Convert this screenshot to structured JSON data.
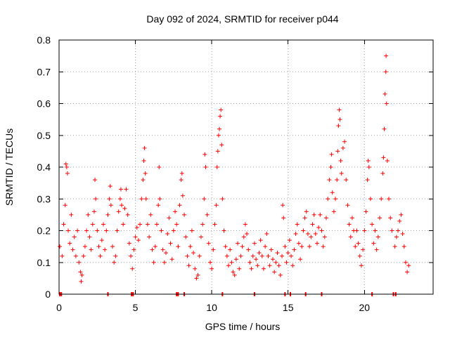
{
  "chart_data": {
    "type": "scatter",
    "title": "Day 092 of 2024, SRMTID for receiver p044",
    "xlabel": "GPS time / hours",
    "ylabel": "SRMTID / TECUs",
    "xlim": [
      0,
      24.5
    ],
    "ylim": [
      0,
      0.8
    ],
    "x_ticks": [
      0,
      5,
      10,
      15,
      20
    ],
    "x_tick_labels": [
      "0",
      "5",
      "10",
      "15",
      "20"
    ],
    "y_ticks": [
      0,
      0.1,
      0.2,
      0.3,
      0.4,
      0.5,
      0.6,
      0.7,
      0.8
    ],
    "y_tick_labels": [
      "0",
      "0.1",
      "0.2",
      "0.3",
      "0.4",
      "0.5",
      "0.6",
      "0.7",
      "0.8"
    ],
    "grid": true,
    "marker": "+",
    "color": "#ff0000",
    "series": [
      {
        "name": "SRMTID",
        "points": [
          [
            0.05,
            0.15
          ],
          [
            0.2,
            0.12
          ],
          [
            0.3,
            0.22
          ],
          [
            0.4,
            0.28
          ],
          [
            0.45,
            0.41
          ],
          [
            0.5,
            0.4
          ],
          [
            0.55,
            0.38
          ],
          [
            0.6,
            0.2
          ],
          [
            0.7,
            0.16
          ],
          [
            0.8,
            0.25
          ],
          [
            0.9,
            0.14
          ],
          [
            1.0,
            0.18
          ],
          [
            1.1,
            0.12
          ],
          [
            1.2,
            0.2
          ],
          [
            1.3,
            0.1
          ],
          [
            1.4,
            0.07
          ],
          [
            1.45,
            0.04
          ],
          [
            1.5,
            0.06
          ],
          [
            1.6,
            0.12
          ],
          [
            1.7,
            0.15
          ],
          [
            1.8,
            0.2
          ],
          [
            1.9,
            0.25
          ],
          [
            2.0,
            0.18
          ],
          [
            2.1,
            0.14
          ],
          [
            2.2,
            0.22
          ],
          [
            2.3,
            0.26
          ],
          [
            2.35,
            0.36
          ],
          [
            2.4,
            0.3
          ],
          [
            2.5,
            0.2
          ],
          [
            2.6,
            0.15
          ],
          [
            2.7,
            0.12
          ],
          [
            2.8,
            0.17
          ],
          [
            2.9,
            0.22
          ],
          [
            3.0,
            0.14
          ],
          [
            3.1,
            0.2
          ],
          [
            3.2,
            0.25
          ],
          [
            3.3,
            0.3
          ],
          [
            3.35,
            0.34
          ],
          [
            3.4,
            0.28
          ],
          [
            3.5,
            0.15
          ],
          [
            3.6,
            0.1
          ],
          [
            3.7,
            0.12
          ],
          [
            3.8,
            0.2
          ],
          [
            3.9,
            0.26
          ],
          [
            4.0,
            0.3
          ],
          [
            4.05,
            0.33
          ],
          [
            4.1,
            0.28
          ],
          [
            4.2,
            0.22
          ],
          [
            4.3,
            0.27
          ],
          [
            4.4,
            0.33
          ],
          [
            4.5,
            0.25
          ],
          [
            4.6,
            0.16
          ],
          [
            4.7,
            0.12
          ],
          [
            4.8,
            0.08
          ],
          [
            4.9,
            0.14
          ],
          [
            5.0,
            0.18
          ],
          [
            5.1,
            0.21
          ],
          [
            5.2,
            0.17
          ],
          [
            5.3,
            0.22
          ],
          [
            5.4,
            0.3
          ],
          [
            5.5,
            0.36
          ],
          [
            5.55,
            0.42
          ],
          [
            5.6,
            0.46
          ],
          [
            5.65,
            0.38
          ],
          [
            5.7,
            0.3
          ],
          [
            5.8,
            0.22
          ],
          [
            5.9,
            0.18
          ],
          [
            6.0,
            0.25
          ],
          [
            6.1,
            0.14
          ],
          [
            6.2,
            0.1
          ],
          [
            6.3,
            0.15
          ],
          [
            6.4,
            0.22
          ],
          [
            6.5,
            0.28
          ],
          [
            6.55,
            0.4
          ],
          [
            6.6,
            0.3
          ],
          [
            6.7,
            0.2
          ],
          [
            6.8,
            0.14
          ],
          [
            6.9,
            0.1
          ],
          [
            7.0,
            0.13
          ],
          [
            7.1,
            0.19
          ],
          [
            7.2,
            0.24
          ],
          [
            7.3,
            0.16
          ],
          [
            7.4,
            0.11
          ],
          [
            7.5,
            0.2
          ],
          [
            7.6,
            0.26
          ],
          [
            7.7,
            0.22
          ],
          [
            7.8,
            0.15
          ],
          [
            7.9,
            0.28
          ],
          [
            8.0,
            0.36
          ],
          [
            8.05,
            0.38
          ],
          [
            8.1,
            0.31
          ],
          [
            8.2,
            0.25
          ],
          [
            8.3,
            0.18
          ],
          [
            8.4,
            0.12
          ],
          [
            8.5,
            0.09
          ],
          [
            8.6,
            0.15
          ],
          [
            8.7,
            0.2
          ],
          [
            8.8,
            0.13
          ],
          [
            8.9,
            0.08
          ],
          [
            9.0,
            0.05
          ],
          [
            9.1,
            0.06
          ],
          [
            9.2,
            0.12
          ],
          [
            9.3,
            0.18
          ],
          [
            9.4,
            0.22
          ],
          [
            9.5,
            0.3
          ],
          [
            9.55,
            0.44
          ],
          [
            9.6,
            0.4
          ],
          [
            9.7,
            0.25
          ],
          [
            9.8,
            0.16
          ],
          [
            9.9,
            0.1
          ],
          [
            10.0,
            0.08
          ],
          [
            10.1,
            0.14
          ],
          [
            10.2,
            0.22
          ],
          [
            10.3,
            0.28
          ],
          [
            10.35,
            0.4
          ],
          [
            10.4,
            0.45
          ],
          [
            10.45,
            0.5
          ],
          [
            10.5,
            0.52
          ],
          [
            10.55,
            0.56
          ],
          [
            10.6,
            0.58
          ],
          [
            10.65,
            0.47
          ],
          [
            10.7,
            0.3
          ],
          [
            10.8,
            0.2
          ],
          [
            10.9,
            0.15
          ],
          [
            11.0,
            0.12
          ],
          [
            11.1,
            0.09
          ],
          [
            11.2,
            0.14
          ],
          [
            11.3,
            0.1
          ],
          [
            11.4,
            0.07
          ],
          [
            11.5,
            0.06
          ],
          [
            11.6,
            0.11
          ],
          [
            11.7,
            0.16
          ],
          [
            11.8,
            0.08
          ],
          [
            11.9,
            0.12
          ],
          [
            12.0,
            0.15
          ],
          [
            12.1,
            0.18
          ],
          [
            12.2,
            0.22
          ],
          [
            12.3,
            0.19
          ],
          [
            12.4,
            0.14
          ],
          [
            12.5,
            0.1
          ],
          [
            12.6,
            0.08
          ],
          [
            12.7,
            0.12
          ],
          [
            12.8,
            0.16
          ],
          [
            12.9,
            0.11
          ],
          [
            13.0,
            0.09
          ],
          [
            13.1,
            0.13
          ],
          [
            13.2,
            0.17
          ],
          [
            13.3,
            0.12
          ],
          [
            13.4,
            0.08
          ],
          [
            13.5,
            0.15
          ],
          [
            13.6,
            0.19
          ],
          [
            13.7,
            0.12
          ],
          [
            13.8,
            0.09
          ],
          [
            13.9,
            0.14
          ],
          [
            14.0,
            0.11
          ],
          [
            14.1,
            0.07
          ],
          [
            14.2,
            0.1
          ],
          [
            14.3,
            0.13
          ],
          [
            14.4,
            0.09
          ],
          [
            14.5,
            0.06
          ],
          [
            14.6,
            0.12
          ],
          [
            14.65,
            0.28
          ],
          [
            14.7,
            0.24
          ],
          [
            14.8,
            0.15
          ],
          [
            14.9,
            0.1
          ],
          [
            15.0,
            0.13
          ],
          [
            15.1,
            0.17
          ],
          [
            15.2,
            0.12
          ],
          [
            15.3,
            0.09
          ],
          [
            15.4,
            0.14
          ],
          [
            15.5,
            0.19
          ],
          [
            15.6,
            0.22
          ],
          [
            15.7,
            0.16
          ],
          [
            15.8,
            0.11
          ],
          [
            15.9,
            0.15
          ],
          [
            16.0,
            0.2
          ],
          [
            16.1,
            0.24
          ],
          [
            16.2,
            0.26
          ],
          [
            16.3,
            0.19
          ],
          [
            16.4,
            0.15
          ],
          [
            16.5,
            0.18
          ],
          [
            16.6,
            0.22
          ],
          [
            16.7,
            0.25
          ],
          [
            16.8,
            0.19
          ],
          [
            16.9,
            0.16
          ],
          [
            17.0,
            0.21
          ],
          [
            17.1,
            0.25
          ],
          [
            17.2,
            0.2
          ],
          [
            17.3,
            0.15
          ],
          [
            17.4,
            0.18
          ],
          [
            17.5,
            0.24
          ],
          [
            17.6,
            0.3
          ],
          [
            17.7,
            0.36
          ],
          [
            17.8,
            0.4
          ],
          [
            17.85,
            0.44
          ],
          [
            17.9,
            0.32
          ],
          [
            18.0,
            0.26
          ],
          [
            18.1,
            0.3
          ],
          [
            18.2,
            0.36
          ],
          [
            18.25,
            0.45
          ],
          [
            18.3,
            0.53
          ],
          [
            18.35,
            0.58
          ],
          [
            18.4,
            0.55
          ],
          [
            18.45,
            0.42
          ],
          [
            18.5,
            0.38
          ],
          [
            18.6,
            0.46
          ],
          [
            18.7,
            0.48
          ],
          [
            18.8,
            0.36
          ],
          [
            18.9,
            0.28
          ],
          [
            19.0,
            0.22
          ],
          [
            19.1,
            0.18
          ],
          [
            19.2,
            0.24
          ],
          [
            19.3,
            0.2
          ],
          [
            19.4,
            0.15
          ],
          [
            19.5,
            0.2
          ],
          [
            19.6,
            0.16
          ],
          [
            19.7,
            0.12
          ],
          [
            19.8,
            0.09
          ],
          [
            19.9,
            0.14
          ],
          [
            20.0,
            0.2
          ],
          [
            20.1,
            0.26
          ],
          [
            20.2,
            0.36
          ],
          [
            20.25,
            0.42
          ],
          [
            20.3,
            0.4
          ],
          [
            20.4,
            0.3
          ],
          [
            20.5,
            0.22
          ],
          [
            20.6,
            0.16
          ],
          [
            20.7,
            0.2
          ],
          [
            20.8,
            0.14
          ],
          [
            20.9,
            0.18
          ],
          [
            21.0,
            0.24
          ],
          [
            21.1,
            0.3
          ],
          [
            21.2,
            0.38
          ],
          [
            21.25,
            0.43
          ],
          [
            21.3,
            0.52
          ],
          [
            21.35,
            0.63
          ],
          [
            21.4,
            0.7
          ],
          [
            21.42,
            0.75
          ],
          [
            21.45,
            0.6
          ],
          [
            21.5,
            0.42
          ],
          [
            21.6,
            0.3
          ],
          [
            21.7,
            0.24
          ],
          [
            21.8,
            0.2
          ],
          [
            22.0,
            0.15
          ],
          [
            22.1,
            0.18
          ],
          [
            22.2,
            0.2
          ],
          [
            22.3,
            0.23
          ],
          [
            22.4,
            0.25
          ],
          [
            22.5,
            0.19
          ],
          [
            22.6,
            0.15
          ],
          [
            22.7,
            0.1
          ],
          [
            22.8,
            0.07
          ],
          [
            22.9,
            0.09
          ]
        ]
      }
    ],
    "gap_markers_x": [
      0.05,
      0.15,
      3.2,
      4.75,
      4.85,
      7.7,
      7.8,
      8.2,
      10.7,
      12.8,
      14.8,
      15.15,
      16.15,
      17.2,
      20.5,
      21.9,
      22.05
    ]
  }
}
